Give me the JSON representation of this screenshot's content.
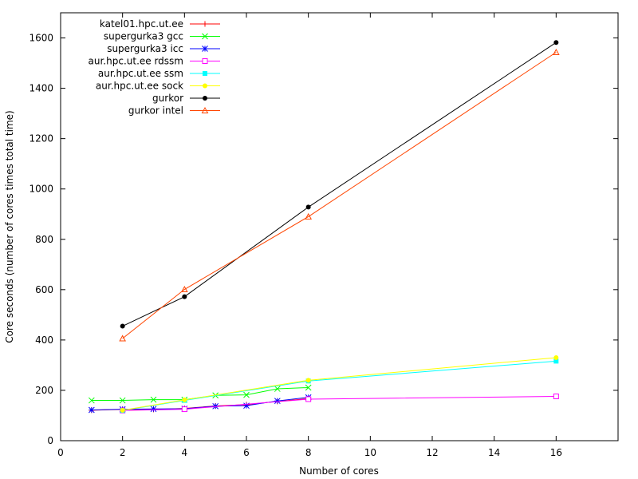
{
  "chart_data": {
    "type": "line",
    "title": "",
    "xlabel": "Number of cores",
    "ylabel": "Core seconds (number of cores times total time)",
    "xlim": [
      0,
      18
    ],
    "ylim": [
      0,
      1700
    ],
    "xticks": [
      0,
      2,
      4,
      6,
      8,
      10,
      12,
      14,
      16
    ],
    "yticks": [
      0,
      200,
      400,
      600,
      800,
      1000,
      1200,
      1400,
      1600
    ],
    "grid": false,
    "legend_position": "top-left",
    "series": [
      {
        "name": "katel01.hpc.ut.ee",
        "color": "#ff0000",
        "marker": "plus",
        "x": [
          1,
          2,
          3,
          4,
          5,
          6,
          7,
          8
        ],
        "y": [
          121,
          124,
          124,
          128,
          138,
          143,
          156,
          167
        ]
      },
      {
        "name": "supergurka3 gcc",
        "color": "#00ff00",
        "marker": "cross",
        "x": [
          1,
          2,
          3,
          4,
          5,
          6,
          7,
          8
        ],
        "y": [
          160,
          160,
          163,
          163,
          180,
          182,
          206,
          211
        ]
      },
      {
        "name": "supergurka3 icc",
        "color": "#0000ff",
        "marker": "star",
        "x": [
          1,
          2,
          3,
          4,
          5,
          6,
          7,
          8
        ],
        "y": [
          122,
          125,
          126,
          127,
          137,
          139,
          158,
          172
        ]
      },
      {
        "name": "aur.hpc.ut.ee rdssm",
        "color": "#ff00ff",
        "marker": "open-square",
        "x": [
          2,
          4,
          8,
          16
        ],
        "y": [
          120,
          125,
          165,
          176
        ]
      },
      {
        "name": "aur.hpc.ut.ee ssm",
        "color": "#00ffff",
        "marker": "filled-square",
        "x": [
          2,
          4,
          8,
          16
        ],
        "y": [
          120,
          160,
          237,
          316
        ]
      },
      {
        "name": "aur.hpc.ut.ee sock",
        "color": "#ffff00",
        "marker": "filled-circle",
        "x": [
          2,
          4,
          8,
          16
        ],
        "y": [
          121,
          162,
          240,
          330
        ]
      },
      {
        "name": "gurkor",
        "color": "#000000",
        "marker": "filled-circle",
        "x": [
          2,
          4,
          8,
          16
        ],
        "y": [
          455,
          572,
          928,
          1582
        ]
      },
      {
        "name": "gurkor intel",
        "color": "#ff4500",
        "marker": "open-triangle",
        "x": [
          2,
          4,
          8,
          16
        ],
        "y": [
          406,
          601,
          890,
          1543
        ]
      }
    ]
  }
}
